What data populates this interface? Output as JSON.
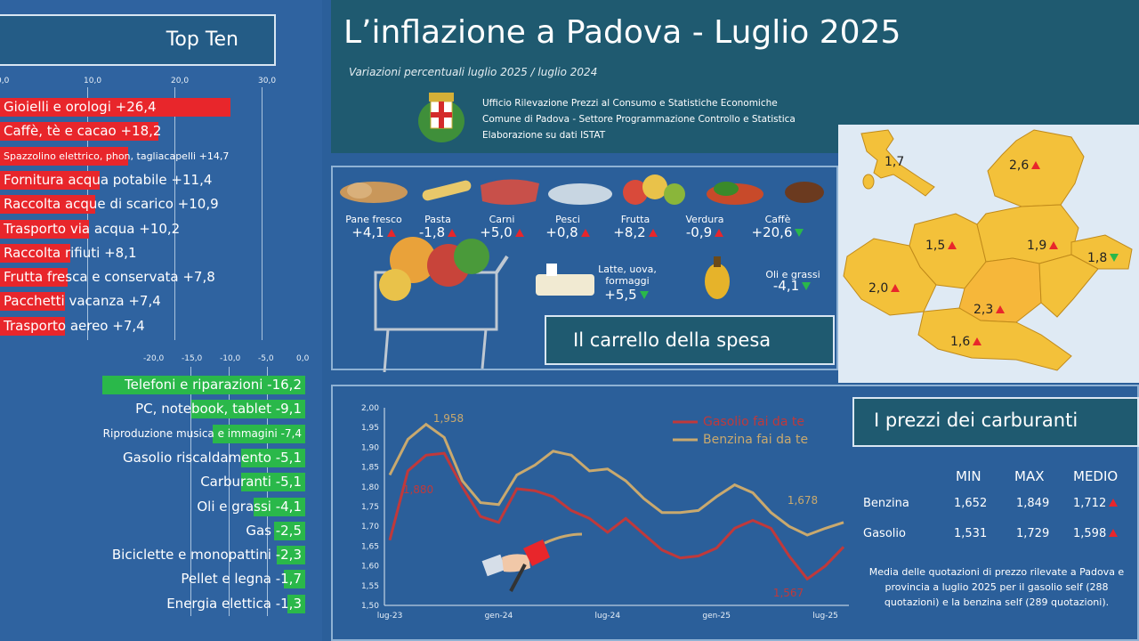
{
  "colors": {
    "increase": "#e8262b",
    "decrease": "#2ab84a",
    "benzina": "#c9a96e",
    "gasolio": "#c0393b"
  },
  "topten": {
    "title": "Top Ten",
    "axis_top": [
      "0,0",
      "10,0",
      "20,0",
      "30,0"
    ],
    "axis_bottom": [
      "-20,0",
      "-15,0",
      "-10,0",
      "-5,0",
      "0,0"
    ],
    "increases": [
      {
        "label": "Gioielli e orologi +26,4",
        "value": 26.4
      },
      {
        "label": "Caffè, tè e cacao +18,2",
        "value": 18.2
      },
      {
        "label": "Spazzolino elettrico, phon, tagliacapelli +14,7",
        "value": 14.7
      },
      {
        "label": "Fornitura acqua potabile +11,4",
        "value": 11.4
      },
      {
        "label": "Raccolta acque di scarico +10,9",
        "value": 10.9
      },
      {
        "label": "Trasporto via acqua +10,2",
        "value": 10.2
      },
      {
        "label": "Raccolta rifiuti +8,1",
        "value": 8.1
      },
      {
        "label": "Frutta fresca e conservata +7,8",
        "value": 7.8
      },
      {
        "label": "Pacchetti vacanza +7,4",
        "value": 7.4
      },
      {
        "label": "Trasporto aereo +7,4",
        "value": 7.4
      }
    ],
    "decreases": [
      {
        "label": "Telefoni e riparazioni -16,2",
        "value": -16.2
      },
      {
        "label": "PC, notebook, tablet -9,1",
        "value": -9.1
      },
      {
        "label": "Riproduzione musica e immagini -7,4",
        "value": -7.4
      },
      {
        "label": "Gasolio riscaldamento -5,1",
        "value": -5.1
      },
      {
        "label": "Carburanti -5,1",
        "value": -5.1
      },
      {
        "label": "Oli e grassi -4,1",
        "value": -4.1
      },
      {
        "label": "Gas -2,5",
        "value": -2.5
      },
      {
        "label": "Biciclette e monopattini -2,3",
        "value": -2.3
      },
      {
        "label": "Pellet e legna -1,7",
        "value": -1.7
      },
      {
        "label": "Energia elettica -1,3",
        "value": -1.3
      }
    ]
  },
  "header": {
    "title": "L’inflazione a Padova - Luglio 2025",
    "subtitle": "Variazioni percentuali luglio 2025 / luglio 2024",
    "office1": "Ufficio Rilevazione Prezzi al Consumo e Statistiche Economiche",
    "office2": "Comune di Padova -  Settore Programmazione Controllo e Statistica",
    "office3": "Elaborazione su dati ISTAT"
  },
  "carrello": {
    "title": "Il carrello della spesa",
    "items": [
      {
        "label": "Pane fresco",
        "value": "+4,1",
        "dir": "up"
      },
      {
        "label": "Pasta",
        "value": "-1,8",
        "dir": "up"
      },
      {
        "label": "Carni",
        "value": "+5,0",
        "dir": "up"
      },
      {
        "label": "Pesci",
        "value": "+0,8",
        "dir": "up"
      },
      {
        "label": "Frutta",
        "value": "+8,2",
        "dir": "up"
      },
      {
        "label": "Verdura",
        "value": "-0,9",
        "dir": "up"
      },
      {
        "label": "Caffè",
        "value": "+20,6",
        "dir": "down"
      }
    ],
    "latte_label1": "Latte, uova,",
    "latte_label2": "formaggi",
    "latte_value": "+5,5",
    "oli_label": "Oli e grassi",
    "oli_value": "-4,1"
  },
  "map": {
    "italy": "1,7",
    "regions": [
      {
        "value": "2,6",
        "dir": "up"
      },
      {
        "value": "1,5",
        "dir": "up"
      },
      {
        "value": "1,9",
        "dir": "up"
      },
      {
        "value": "1,8",
        "dir": "down"
      },
      {
        "value": "2,0",
        "dir": "up"
      },
      {
        "value": "2,3",
        "dir": "up"
      },
      {
        "value": "1,6",
        "dir": "up"
      }
    ]
  },
  "carburanti": {
    "title": "I prezzi dei carburanti",
    "headers": [
      "MIN",
      "MAX",
      "MEDIO"
    ],
    "rows": [
      {
        "name": "Benzina",
        "min": "1,652",
        "max": "1,849",
        "medio": "1,712"
      },
      {
        "name": "Gasolio",
        "min": "1,531",
        "max": "1,729",
        "medio": "1,598"
      }
    ],
    "note": "Media delle quotazioni di prezzo rilevate a Padova e provincia a luglio 2025 per il gasolio self (288 quotazioni) e la benzina self (289 quotazioni)."
  },
  "chart_data": {
    "type": "line",
    "y_ticks": [
      "2,00",
      "1,95",
      "1,90",
      "1,85",
      "1,80",
      "1,75",
      "1,70",
      "1,65",
      "1,60",
      "1,55",
      "1,50"
    ],
    "ylim": [
      1.5,
      2.0
    ],
    "x_ticks": [
      "lug-23",
      "gen-24",
      "lug-24",
      "gen-25",
      "lug-25"
    ],
    "annotations": [
      "1,958",
      "1,880",
      "1,678",
      "1,567"
    ],
    "series": [
      {
        "name": "Gasolio fai da te",
        "values": [
          1.665,
          1.84,
          1.88,
          1.885,
          1.8,
          1.725,
          1.71,
          1.795,
          1.79,
          1.775,
          1.74,
          1.72,
          1.685,
          1.72,
          1.68,
          1.64,
          1.62,
          1.625,
          1.645,
          1.695,
          1.715,
          1.695,
          1.625,
          1.567,
          1.6,
          1.648
        ]
      },
      {
        "name": "Benzina fai da te",
        "values": [
          1.83,
          1.92,
          1.958,
          1.925,
          1.815,
          1.76,
          1.755,
          1.83,
          1.855,
          1.89,
          1.88,
          1.84,
          1.845,
          1.815,
          1.77,
          1.735,
          1.735,
          1.74,
          1.775,
          1.805,
          1.785,
          1.735,
          1.7,
          1.678,
          1.695,
          1.71
        ]
      }
    ]
  }
}
